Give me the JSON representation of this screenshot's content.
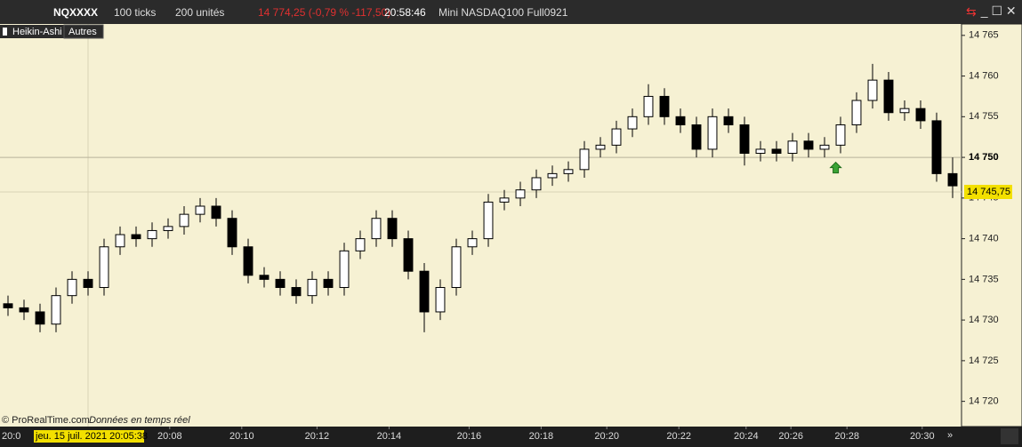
{
  "toolbar": {
    "symbol": "NQXXXX",
    "interval": "100 ticks",
    "units": "200 unités",
    "quote": "14 774,25 (-0,79 % -117,50)",
    "time": "20:58:46",
    "instrument": "Mini NASDAQ100 Full0921"
  },
  "tabs": [
    "Heikin-Ashi",
    "Autres"
  ],
  "footer": {
    "copyright": "© ProRealTime.com",
    "realtime": "Données en temps réel",
    "cursor_date": "jeu. 15 juil. 2021 20:05:38",
    "partial_time": "20:0"
  },
  "chart_data": {
    "type": "candlestick",
    "open": [
      14732,
      14731.5,
      14731,
      14729.5,
      14733,
      14735,
      14734,
      14739,
      14740.5,
      14740,
      14741,
      14741.5,
      14743,
      14744,
      14742.5,
      14739,
      14735.5,
      14735,
      14734,
      14733,
      14735,
      14734,
      14738.5,
      14740,
      14742.5,
      14740,
      14736,
      14731,
      14734,
      14739,
      14740,
      14744.5,
      14745,
      14746,
      14747.5,
      14748,
      14748.5,
      14751,
      14751.5,
      14753.5,
      14755,
      14757.5,
      14755,
      14754,
      14751,
      14755,
      14754,
      14750.5,
      14751,
      14750.5,
      14752,
      14751,
      14751.5,
      14754,
      14757,
      14759.5,
      14755.5,
      14756,
      14754.5,
      14748
    ],
    "high": [
      14733,
      14732.5,
      14732,
      14734,
      14736,
      14736,
      14740,
      14741.5,
      14741.5,
      14742,
      14742.5,
      14744,
      14745,
      14745,
      14743.5,
      14740,
      14736.5,
      14736,
      14735,
      14736,
      14736,
      14739.5,
      14741,
      14743.5,
      14743.5,
      14741,
      14737,
      14735,
      14740,
      14741,
      14745.5,
      14746,
      14747,
      14748.5,
      14749,
      14749.5,
      14752,
      14752.5,
      14754.5,
      14756,
      14759,
      14758.5,
      14756,
      14755,
      14756,
      14756,
      14755,
      14752,
      14752,
      14753,
      14753,
      14752.5,
      14755,
      14758,
      14761.5,
      14760.5,
      14757,
      14757,
      14755.5,
      14750
    ],
    "low": [
      14730.5,
      14730,
      14728.5,
      14728.5,
      14732,
      14733,
      14733,
      14738,
      14739,
      14739,
      14740,
      14740.5,
      14742,
      14741.5,
      14738,
      14734.5,
      14734,
      14733,
      14732,
      14732,
      14733,
      14733,
      14737.5,
      14739,
      14739,
      14735,
      14728.5,
      14730,
      14733,
      14738,
      14739,
      14743.5,
      14744,
      14745,
      14746.5,
      14747,
      14747.5,
      14750,
      14750.5,
      14752.5,
      14754,
      14754,
      14753,
      14750,
      14750,
      14753,
      14749,
      14749.5,
      14749.5,
      14749.5,
      14750,
      14750,
      14750.5,
      14753,
      14756,
      14754.5,
      14754.5,
      14753.5,
      14747,
      14745
    ],
    "close": [
      14731.5,
      14731,
      14729.5,
      14733,
      14735,
      14734,
      14739,
      14740.5,
      14740,
      14741,
      14741.5,
      14743,
      14744,
      14742.5,
      14739,
      14735.5,
      14735,
      14734,
      14733,
      14735,
      14734,
      14738.5,
      14740,
      14742.5,
      14740,
      14736,
      14731,
      14734,
      14739,
      14740,
      14744.5,
      14745,
      14746,
      14747.5,
      14748,
      14748.5,
      14751,
      14751.5,
      14753.5,
      14755,
      14757.5,
      14755,
      14754,
      14751,
      14755,
      14754,
      14750.5,
      14751,
      14750.5,
      14752,
      14751,
      14751.5,
      14754,
      14757,
      14759.5,
      14755.5,
      14756,
      14754.5,
      14748,
      14746.5
    ],
    "up_color": "#ffffff",
    "down_color": "#000000",
    "xlim": [
      -0.5,
      59.5
    ],
    "xticks": [
      {
        "value": 10.1,
        "label": "20:08"
      },
      {
        "value": 14.6,
        "label": "20:10"
      },
      {
        "value": 19.3,
        "label": "20:12"
      },
      {
        "value": 23.8,
        "label": "20:14"
      },
      {
        "value": 28.8,
        "label": "20:16"
      },
      {
        "value": 33.3,
        "label": "20:18"
      },
      {
        "value": 37.4,
        "label": "20:20"
      },
      {
        "value": 41.9,
        "label": "20:22"
      },
      {
        "value": 46.1,
        "label": "20:24"
      },
      {
        "value": 48.9,
        "label": "20:26"
      },
      {
        "value": 52.4,
        "label": "20:28"
      },
      {
        "value": 57.1,
        "label": "20:30"
      }
    ],
    "ylim": [
      14716.9,
      14766.4
    ],
    "yticks": [
      {
        "value": 14720,
        "label": "14 720"
      },
      {
        "value": 14725,
        "label": "14 725"
      },
      {
        "value": 14730,
        "label": "14 730"
      },
      {
        "value": 14735,
        "label": "14 735"
      },
      {
        "value": 14740,
        "label": "14 740"
      },
      {
        "value": 14745,
        "label": "14 745"
      },
      {
        "value": 14750,
        "label": "14 750"
      },
      {
        "value": 14755,
        "label": "14 755"
      },
      {
        "value": 14760,
        "label": "14 760"
      },
      {
        "value": 14765,
        "label": "14 765"
      }
    ],
    "level": {
      "value": 14750,
      "label": "14 750"
    },
    "last_price": {
      "value": 14745.75,
      "label": "14 745,75"
    },
    "arrow": {
      "x": 51.7,
      "y": 14749.4,
      "color": "#3aa335"
    }
  }
}
